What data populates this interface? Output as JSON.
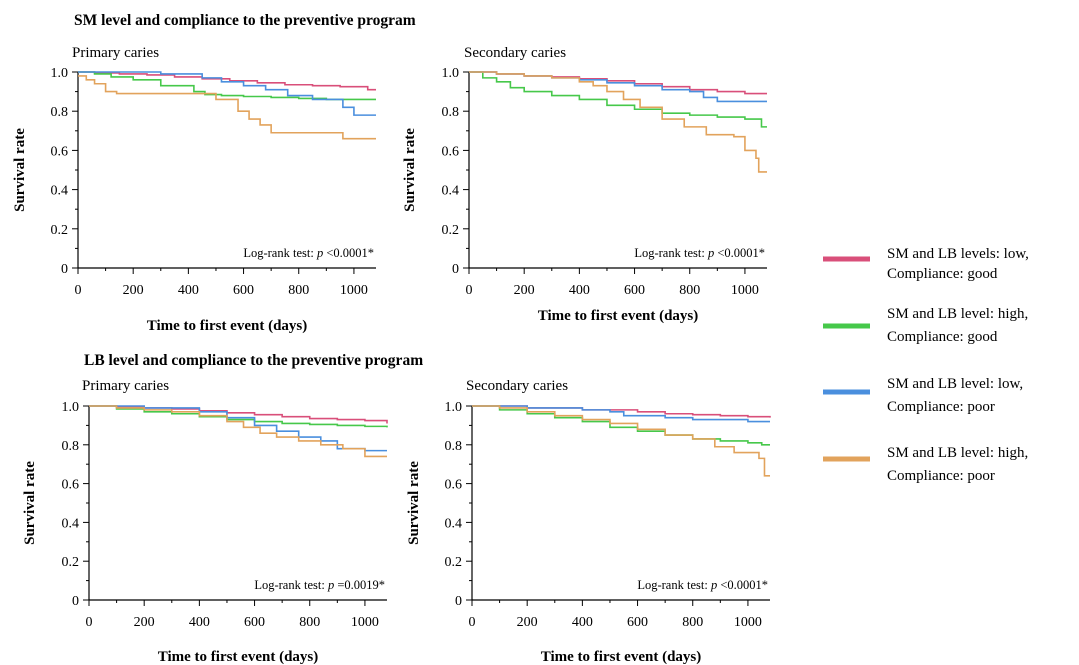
{
  "sections": [
    {
      "title": "SM level and compliance to the preventive program"
    },
    {
      "title": "LB level and compliance to the preventive program"
    }
  ],
  "legend": [
    {
      "line1": "SM and LB levels: low,",
      "line2": "Compliance: good",
      "color": "#d94f7a"
    },
    {
      "line1": "SM and LB level: high,",
      "line2": "Compliance: good",
      "color": "#46c84a"
    },
    {
      "line1": "SM and LB level: low,",
      "line2": "Compliance: poor",
      "color": "#4a8fde"
    },
    {
      "line1": "SM and LB level: high,",
      "line2": "Compliance: poor",
      "color": "#e2a35c"
    }
  ],
  "chart_data": [
    {
      "type": "line",
      "subtitle": "Primary caries",
      "xlabel": "Time to first event (days)",
      "ylabel": "Survival rate",
      "xlim": [
        0,
        1080
      ],
      "ylim": [
        0,
        1.0
      ],
      "xticks": [
        0,
        200,
        400,
        600,
        800,
        1000
      ],
      "yticks": [
        0,
        0.2,
        0.4,
        0.6,
        0.8,
        1.0
      ],
      "ytick_labels": [
        "0",
        "0.2",
        "0.4",
        "0.6",
        "0.8",
        "1.0"
      ],
      "annotation_prefix": "Log-rank test: ",
      "annotation_p": "p",
      "annotation_suffix": " <0.0001*",
      "series": [
        {
          "color": "#d94f7a",
          "x": [
            0,
            60,
            150,
            250,
            350,
            450,
            550,
            650,
            750,
            850,
            950,
            1050,
            1080
          ],
          "y": [
            1.0,
            0.995,
            0.99,
            0.985,
            0.975,
            0.965,
            0.955,
            0.945,
            0.935,
            0.93,
            0.925,
            0.91,
            0.91
          ]
        },
        {
          "color": "#46c84a",
          "x": [
            0,
            60,
            120,
            200,
            300,
            420,
            460,
            520,
            600,
            700,
            800,
            900,
            1000,
            1080
          ],
          "y": [
            1.0,
            0.99,
            0.975,
            0.96,
            0.93,
            0.9,
            0.885,
            0.88,
            0.875,
            0.87,
            0.865,
            0.86,
            0.86,
            0.86
          ]
        },
        {
          "color": "#4a8fde",
          "x": [
            0,
            150,
            300,
            450,
            520,
            600,
            680,
            760,
            850,
            960,
            1000,
            1080
          ],
          "y": [
            1.0,
            1.0,
            0.99,
            0.97,
            0.95,
            0.93,
            0.91,
            0.88,
            0.86,
            0.82,
            0.78,
            0.78
          ]
        },
        {
          "color": "#e2a35c",
          "x": [
            0,
            30,
            60,
            100,
            140,
            420,
            500,
            580,
            620,
            660,
            700,
            960,
            1080
          ],
          "y": [
            0.98,
            0.96,
            0.94,
            0.9,
            0.89,
            0.89,
            0.86,
            0.8,
            0.76,
            0.73,
            0.69,
            0.66,
            0.66
          ]
        }
      ]
    },
    {
      "type": "line",
      "subtitle": "Secondary caries",
      "xlabel": "Time to first event (days)",
      "ylabel": "Survival rate",
      "xlim": [
        0,
        1080
      ],
      "ylim": [
        0,
        1.0
      ],
      "xticks": [
        0,
        200,
        400,
        600,
        800,
        1000
      ],
      "yticks": [
        0,
        0.2,
        0.4,
        0.6,
        0.8,
        1.0
      ],
      "ytick_labels": [
        "0",
        "0.2",
        "0.4",
        "0.6",
        "0.8",
        "1.0"
      ],
      "annotation_prefix": "Log-rank test: ",
      "annotation_p": "p",
      "annotation_suffix": " <0.0001*",
      "series": [
        {
          "color": "#d94f7a",
          "x": [
            0,
            100,
            200,
            300,
            400,
            500,
            600,
            700,
            800,
            900,
            1000,
            1080
          ],
          "y": [
            1.0,
            0.99,
            0.98,
            0.975,
            0.965,
            0.955,
            0.94,
            0.925,
            0.91,
            0.9,
            0.89,
            0.89
          ]
        },
        {
          "color": "#46c84a",
          "x": [
            0,
            50,
            100,
            150,
            200,
            300,
            400,
            500,
            600,
            700,
            800,
            900,
            1000,
            1060,
            1080
          ],
          "y": [
            1.0,
            0.97,
            0.95,
            0.92,
            0.9,
            0.88,
            0.86,
            0.83,
            0.81,
            0.79,
            0.78,
            0.77,
            0.76,
            0.72,
            0.72
          ]
        },
        {
          "color": "#4a8fde",
          "x": [
            0,
            100,
            200,
            300,
            400,
            500,
            600,
            700,
            800,
            850,
            900,
            1080
          ],
          "y": [
            1.0,
            0.99,
            0.98,
            0.97,
            0.96,
            0.945,
            0.93,
            0.91,
            0.9,
            0.87,
            0.85,
            0.85
          ]
        },
        {
          "color": "#e2a35c",
          "x": [
            0,
            100,
            200,
            300,
            400,
            450,
            500,
            560,
            620,
            700,
            780,
            860,
            960,
            1000,
            1040,
            1050,
            1080
          ],
          "y": [
            1.0,
            0.99,
            0.98,
            0.97,
            0.95,
            0.93,
            0.9,
            0.86,
            0.82,
            0.76,
            0.72,
            0.68,
            0.67,
            0.6,
            0.56,
            0.49,
            0.49
          ]
        }
      ]
    },
    {
      "type": "line",
      "subtitle": "Primary caries",
      "xlabel": "Time to first event (days)",
      "ylabel": "Survival rate",
      "xlim": [
        0,
        1080
      ],
      "ylim": [
        0,
        1.0
      ],
      "xticks": [
        0,
        200,
        400,
        600,
        800,
        1000
      ],
      "yticks": [
        0,
        0.2,
        0.4,
        0.6,
        0.8,
        1.0
      ],
      "ytick_labels": [
        "0",
        "0.2",
        "0.4",
        "0.6",
        "0.8",
        "1.0"
      ],
      "annotation_prefix": "Log-rank test: ",
      "annotation_p": "p",
      "annotation_suffix": " =0.0019*",
      "series": [
        {
          "color": "#d94f7a",
          "x": [
            0,
            100,
            200,
            300,
            400,
            500,
            600,
            700,
            800,
            900,
            1000,
            1080
          ],
          "y": [
            1.0,
            0.995,
            0.99,
            0.985,
            0.975,
            0.965,
            0.955,
            0.945,
            0.935,
            0.93,
            0.925,
            0.91
          ]
        },
        {
          "color": "#46c84a",
          "x": [
            0,
            100,
            200,
            300,
            400,
            500,
            600,
            700,
            800,
            900,
            1000,
            1080
          ],
          "y": [
            1.0,
            0.985,
            0.97,
            0.96,
            0.945,
            0.93,
            0.92,
            0.91,
            0.905,
            0.9,
            0.895,
            0.89
          ]
        },
        {
          "color": "#4a8fde",
          "x": [
            0,
            200,
            400,
            500,
            600,
            680,
            760,
            840,
            900,
            1000,
            1080
          ],
          "y": [
            1.0,
            0.99,
            0.97,
            0.94,
            0.9,
            0.87,
            0.84,
            0.82,
            0.78,
            0.77,
            0.77
          ]
        },
        {
          "color": "#e2a35c",
          "x": [
            0,
            100,
            200,
            300,
            400,
            500,
            560,
            620,
            680,
            760,
            840,
            920,
            1000,
            1080
          ],
          "y": [
            1.0,
            0.99,
            0.98,
            0.97,
            0.95,
            0.92,
            0.89,
            0.86,
            0.84,
            0.82,
            0.8,
            0.78,
            0.74,
            0.74
          ]
        }
      ]
    },
    {
      "type": "line",
      "subtitle": "Secondary caries",
      "xlabel": "Time to first event (days)",
      "ylabel": "Survival rate",
      "xlim": [
        0,
        1080
      ],
      "ylim": [
        0,
        1.0
      ],
      "xticks": [
        0,
        200,
        400,
        600,
        800,
        1000
      ],
      "yticks": [
        0,
        0.2,
        0.4,
        0.6,
        0.8,
        1.0
      ],
      "ytick_labels": [
        "0",
        "0.2",
        "0.4",
        "0.6",
        "0.8",
        "1.0"
      ],
      "annotation_prefix": "Log-rank test: ",
      "annotation_p": "p",
      "annotation_suffix": " <0.0001*",
      "series": [
        {
          "color": "#d94f7a",
          "x": [
            0,
            200,
            400,
            600,
            700,
            800,
            900,
            1000,
            1080
          ],
          "y": [
            1.0,
            0.99,
            0.98,
            0.97,
            0.96,
            0.955,
            0.95,
            0.945,
            0.94
          ]
        },
        {
          "color": "#46c84a",
          "x": [
            0,
            100,
            200,
            300,
            400,
            500,
            600,
            700,
            800,
            900,
            1000,
            1050,
            1080
          ],
          "y": [
            1.0,
            0.98,
            0.96,
            0.94,
            0.92,
            0.89,
            0.87,
            0.85,
            0.83,
            0.82,
            0.81,
            0.8,
            0.8
          ]
        },
        {
          "color": "#4a8fde",
          "x": [
            0,
            200,
            400,
            500,
            550,
            700,
            800,
            900,
            1000,
            1080
          ],
          "y": [
            1.0,
            0.99,
            0.98,
            0.97,
            0.95,
            0.94,
            0.93,
            0.93,
            0.92,
            0.92
          ]
        },
        {
          "color": "#e2a35c",
          "x": [
            0,
            100,
            200,
            300,
            400,
            500,
            600,
            700,
            800,
            880,
            950,
            1040,
            1060,
            1080
          ],
          "y": [
            1.0,
            0.99,
            0.97,
            0.95,
            0.93,
            0.91,
            0.88,
            0.85,
            0.83,
            0.79,
            0.76,
            0.73,
            0.64,
            0.64
          ]
        }
      ]
    }
  ]
}
